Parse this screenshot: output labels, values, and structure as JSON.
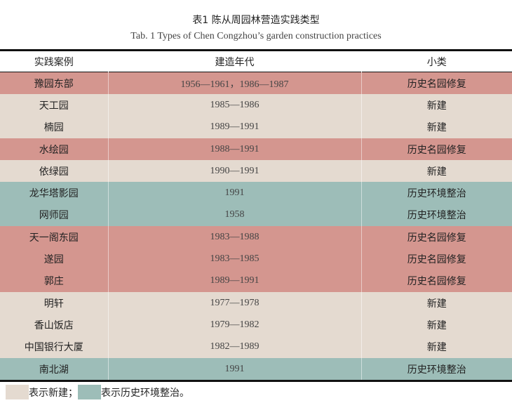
{
  "title": "表1 陈从周园林营造实践类型",
  "subtitle": "Tab. 1  Types of Chen Congzhou’s garden construction practices",
  "colors": {
    "restoration": "#d4968f",
    "new": "#e4dad0",
    "environment": "#9dbdb8"
  },
  "headers": [
    "实践案例",
    "建造年代",
    "小类"
  ],
  "rows": [
    {
      "name": "豫园东部",
      "years": "1956—1961，1986—1987",
      "type": "历史名园修复",
      "color": "restoration"
    },
    {
      "name": "天工园",
      "years": "1985—1986",
      "type": "新建",
      "color": "new"
    },
    {
      "name": "楠园",
      "years": "1989—1991",
      "type": "新建",
      "color": "new"
    },
    {
      "name": "水绘园",
      "years": "1988—1991",
      "type": "历史名园修复",
      "color": "restoration"
    },
    {
      "name": "依绿园",
      "years": "1990—1991",
      "type": "新建",
      "color": "new"
    },
    {
      "name": "龙华塔影园",
      "years": "1991",
      "type": "历史环境整治",
      "color": "environment"
    },
    {
      "name": "网师园",
      "years": "1958",
      "type": "历史环境整治",
      "color": "environment"
    },
    {
      "name": "天一阁东园",
      "years": "1983—1988",
      "type": "历史名园修复",
      "color": "restoration"
    },
    {
      "name": "遂园",
      "years": "1983—1985",
      "type": "历史名园修复",
      "color": "restoration"
    },
    {
      "name": "郭庄",
      "years": "1989—1991",
      "type": "历史名园修复",
      "color": "restoration"
    },
    {
      "name": "明轩",
      "years": "1977—1978",
      "type": "新建",
      "color": "new"
    },
    {
      "name": "香山饭店",
      "years": "1979—1982",
      "type": "新建",
      "color": "new"
    },
    {
      "name": "中国银行大厦",
      "years": "1982—1989",
      "type": "新建",
      "color": "new"
    },
    {
      "name": "南北湖",
      "years": "1991",
      "type": "历史环境整治",
      "color": "environment"
    }
  ],
  "legend": {
    "new_label": "表示新建；",
    "environment_label": "表示历史环境整治。"
  }
}
